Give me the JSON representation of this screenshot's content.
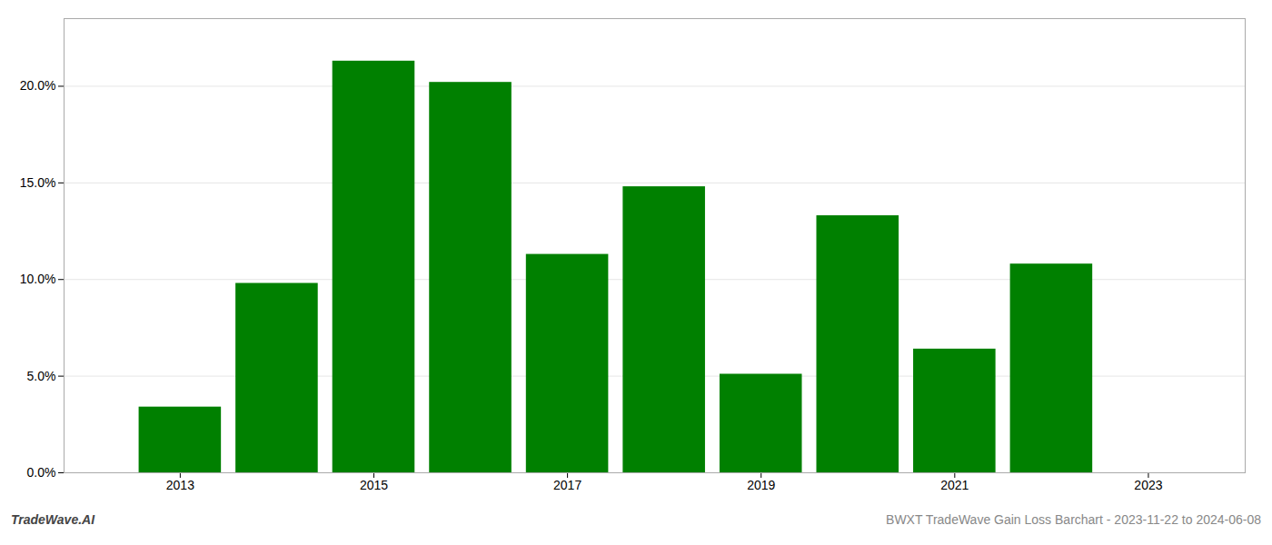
{
  "chart_data": {
    "type": "bar",
    "x": [
      2013,
      2014,
      2015,
      2016,
      2017,
      2018,
      2019,
      2020,
      2021,
      2022
    ],
    "values": [
      0.034,
      0.098,
      0.213,
      0.202,
      0.113,
      0.148,
      0.051,
      0.133,
      0.064,
      0.108
    ],
    "color": "#008000",
    "xlim": [
      2011.8,
      2024.0
    ],
    "xticks": [
      2013,
      2015,
      2017,
      2019,
      2021,
      2023
    ],
    "ylim": [
      0,
      0.235
    ],
    "yticks": [
      {
        "value": 0.0,
        "label": "0.0%"
      },
      {
        "value": 0.05,
        "label": "5.0%"
      },
      {
        "value": 0.1,
        "label": "10.0%"
      },
      {
        "value": 0.15,
        "label": "15.0%"
      },
      {
        "value": 0.2,
        "label": "20.0%"
      }
    ],
    "grid": true,
    "annotations": [
      "TradeWave.AI",
      "BWXT TradeWave Gain Loss Barchart - 2023-11-22 to 2024-06-08"
    ]
  }
}
